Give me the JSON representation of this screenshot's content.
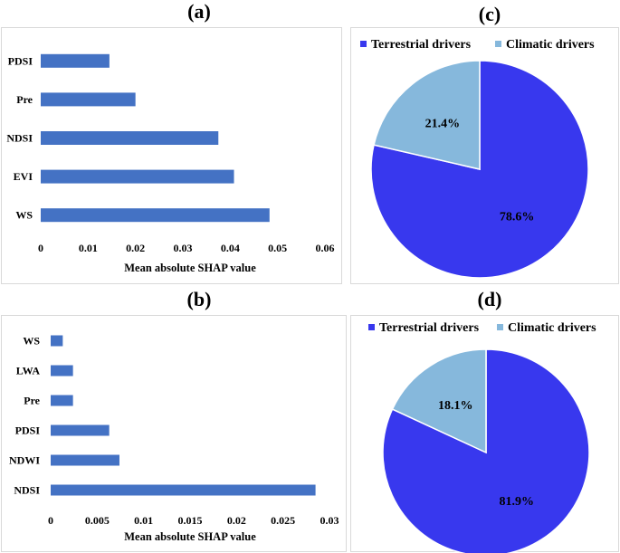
{
  "chart_data": [
    {
      "panel": "(a)",
      "type": "bar",
      "orientation": "horizontal",
      "categories": [
        "PDSI",
        "Pre",
        "NDSI",
        "EVI",
        "WS"
      ],
      "values": [
        0.0145,
        0.02,
        0.0375,
        0.0408,
        0.0483
      ],
      "xlabel": "Mean absolute SHAP value",
      "xlim": [
        0,
        0.06
      ],
      "ticks": [
        "0",
        "0.01",
        "0.02",
        "0.03",
        "0.04",
        "0.05",
        "0.06"
      ],
      "tick_values": [
        0,
        0.01,
        0.02,
        0.03,
        0.04,
        0.05,
        0.06
      ],
      "color": "#4472c4"
    },
    {
      "panel": "(b)",
      "type": "bar",
      "orientation": "horizontal",
      "categories": [
        "WS",
        "LWA",
        "Pre",
        "PDSI",
        "NDWI",
        "NDSI"
      ],
      "values": [
        0.0013,
        0.0024,
        0.0024,
        0.0063,
        0.0074,
        0.0285
      ],
      "xlabel": "Mean absolute SHAP value",
      "xlim": [
        0,
        0.03
      ],
      "ticks": [
        "0",
        "0.005",
        "0.01",
        "0.015",
        "0.02",
        "0.025",
        "0.03"
      ],
      "tick_values": [
        0,
        0.005,
        0.01,
        0.015,
        0.02,
        0.025,
        0.03
      ],
      "color": "#4472c4"
    },
    {
      "panel": "(c)",
      "type": "pie",
      "legend": [
        "Terrestrial drivers",
        "Climatic drivers"
      ],
      "values": [
        78.6,
        21.4
      ],
      "labels": [
        "78.6%",
        "21.4%"
      ],
      "colors": [
        "#3838ee",
        "#86b8dc"
      ]
    },
    {
      "panel": "(d)",
      "type": "pie",
      "legend": [
        "Terrestrial drivers",
        "Climatic drivers"
      ],
      "values": [
        81.9,
        18.1
      ],
      "labels": [
        "81.9%",
        "18.1%"
      ],
      "colors": [
        "#3838ee",
        "#86b8dc"
      ]
    }
  ]
}
